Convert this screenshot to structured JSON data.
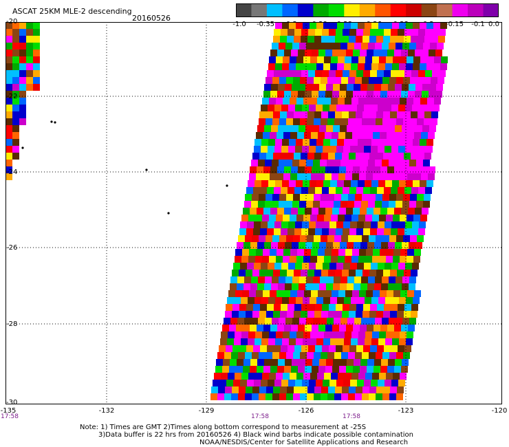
{
  "header": {
    "title": "ASCAT 25KM MLE-2 descending",
    "date": "20160526"
  },
  "colorbar": {
    "colors": [
      "#444444",
      "#777777",
      "#00bfff",
      "#0066ff",
      "#0000cc",
      "#00aa00",
      "#00dd00",
      "#ffee00",
      "#ffaa00",
      "#ff5500",
      "#ff0000",
      "#cc0000",
      "#8b4513",
      "#c07050",
      "#ee00ee",
      "#bb00bb",
      "#7f00aa"
    ],
    "labels": [
      "-1.0",
      "-0.35",
      "-0.3",
      "-0.29",
      "-0.28",
      "-0.26",
      "-0.23",
      "-0.2",
      "-0.15",
      "-0.1",
      "0.0"
    ]
  },
  "axes": {
    "y_labels": [
      "-20",
      "-22",
      "-24",
      "-26",
      "-28",
      "-30"
    ],
    "x_labels": [
      "-135",
      "-132",
      "-129",
      "-126",
      "-123",
      "-120"
    ],
    "time_labels": [
      "17:58",
      "17:58",
      "17:58"
    ]
  },
  "swath_palette": [
    "#ff00ff",
    "#cc00cc",
    "#ff0000",
    "#ff6600",
    "#ffaa00",
    "#ffee00",
    "#00aa00",
    "#00dd00",
    "#00bfff",
    "#0066ff",
    "#0000cc",
    "#8b4513",
    "#5a2a00",
    "#ee0000"
  ],
  "notes": {
    "line1": "Note: 1) Times are GMT 2)Times along bottom correspond to measurement at -25S",
    "line2": "3)Data buffer is 22 hrs from 20160526 4) Black wind barbs indicate possible contamination",
    "line3": "NOAA/NESDIS/Center for Satellite Applications and Research"
  }
}
